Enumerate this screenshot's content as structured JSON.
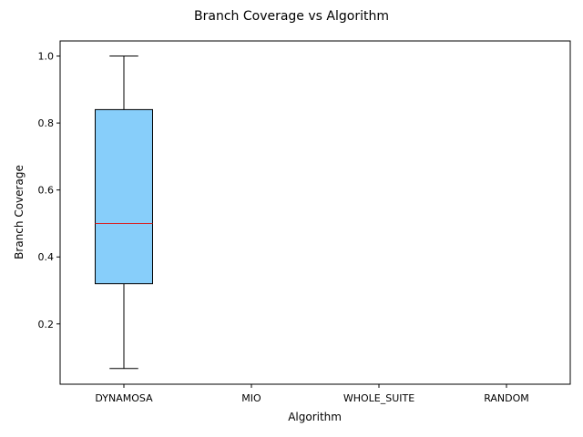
{
  "chart_data": {
    "type": "box",
    "title": "Branch Coverage vs Algorithm",
    "xlabel": "Algorithm",
    "ylabel": "Branch Coverage",
    "categories": [
      "DYNAMOSA",
      "MIO",
      "WHOLE_SUITE",
      "RANDOM"
    ],
    "ylim": [
      0.02,
      1.045
    ],
    "yticks": [
      0.2,
      0.4,
      0.6,
      0.8,
      1.0
    ],
    "ytick_labels": [
      "0.2",
      "0.4",
      "0.6",
      "0.8",
      "1.0"
    ],
    "boxes": [
      {
        "category": "DYNAMOSA",
        "whisker_low": 0.067,
        "q1": 0.32,
        "median": 0.5,
        "q3": 0.84,
        "whisker_high": 1.0
      },
      {
        "category": "MIO"
      },
      {
        "category": "WHOLE_SUITE"
      },
      {
        "category": "RANDOM"
      }
    ],
    "colors": {
      "box_fill": "#87cefa",
      "median_line": "#d62728",
      "edge": "#000000"
    },
    "grid": false
  }
}
